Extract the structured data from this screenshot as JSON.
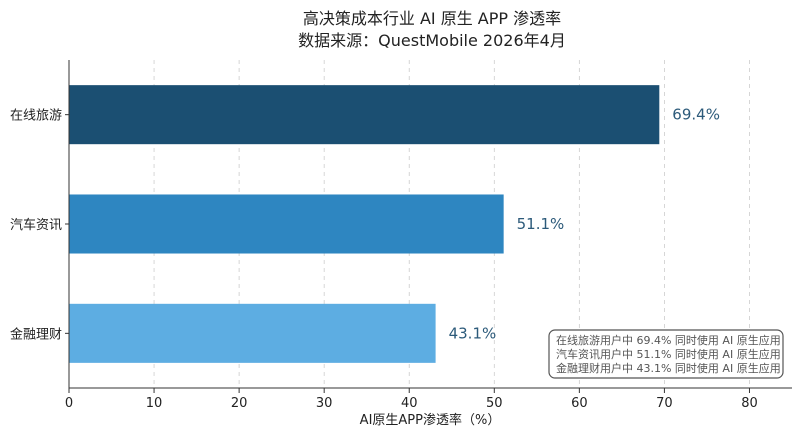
{
  "chart_data": {
    "type": "bar",
    "orientation": "horizontal",
    "title": "高决策成本行业 AI 原生 APP 渗透率",
    "subtitle": "数据来源：QuestMobile 2026年4月",
    "categories": [
      "在线旅游",
      "汽车资讯",
      "金融理财"
    ],
    "values": [
      69.4,
      51.1,
      43.1
    ],
    "value_labels": [
      "69.4%",
      "51.1%",
      "43.1%"
    ],
    "colors": [
      "#1b4f72",
      "#2e86c1",
      "#5dade2"
    ],
    "label_color": "#2c5a7a",
    "xlabel": "AI原生APP渗透率（%）",
    "xlim": [
      0,
      85
    ],
    "xticks": [
      0,
      10,
      20,
      30,
      40,
      50,
      60,
      70,
      80
    ],
    "grid": "vertical-dashed",
    "annotation": {
      "position": "bottom-right",
      "lines": [
        "在线旅游用户中 69.4% 同时使用 AI 原生应用",
        "汽车资讯用户中 51.1% 同时使用 AI 原生应用",
        "金融理财用户中 43.1% 同时使用 AI 原生应用"
      ]
    }
  }
}
